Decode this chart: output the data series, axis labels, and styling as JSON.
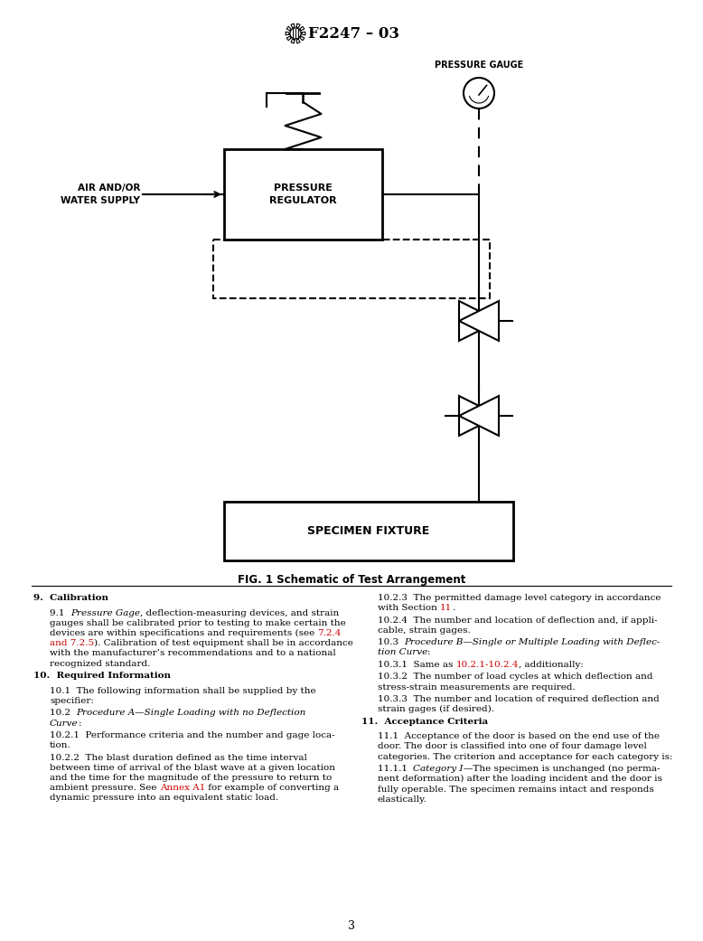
{
  "title": "F2247 – 03",
  "page_number": "3",
  "bg": "#ffffff",
  "black": "#000000",
  "red": "#cc0000",
  "fig_caption": "FIG. 1 Schematic of Test Arrangement",
  "pressure_gauge_label": "PRESSURE GAUGE",
  "pressure_regulator_label": "PRESSURE\nREGULATOR",
  "air_water_label": "AIR AND/OR\nWATER SUPPLY",
  "specimen_fixture_label": "SPECIMEN FIXTURE",
  "left_col": [
    {
      "type": "heading",
      "text": "9.  Calibration"
    },
    {
      "type": "para_mixed",
      "indent": 18,
      "segments": [
        {
          "t": "9.1  ",
          "s": "normal"
        },
        {
          "t": "Pressure Gage",
          "s": "italic"
        },
        {
          "t": ", deflection-measuring devices, and strain\ngauges shall be calibrated prior to testing to make certain the\ndevices are within specifications and requirements (see ",
          "s": "normal"
        },
        {
          "t": "7.2.4\nand 7.2.5",
          "s": "red"
        },
        {
          "t": "). Calibration of test equipment shall be in accordance\nwith the manufacturer’s recommendations and to a national\nrecognized standard.",
          "s": "normal"
        }
      ]
    },
    {
      "type": "heading",
      "text": "10.  Required Information"
    },
    {
      "type": "para_mixed",
      "indent": 18,
      "segments": [
        {
          "t": "10.1  The following information shall be supplied by the\nspecifier:",
          "s": "normal"
        }
      ]
    },
    {
      "type": "para_mixed",
      "indent": 18,
      "segments": [
        {
          "t": "10.2  ",
          "s": "normal"
        },
        {
          "t": "Procedure A—Single Loading with no Deflection\nCurve",
          "s": "italic"
        },
        {
          "t": ":",
          "s": "normal"
        }
      ]
    },
    {
      "type": "para_mixed",
      "indent": 18,
      "segments": [
        {
          "t": "10.2.1  Performance criteria and the number and gage loca-\ntion.",
          "s": "normal"
        }
      ]
    },
    {
      "type": "para_mixed",
      "indent": 18,
      "segments": [
        {
          "t": "10.2.2  The blast duration defined as the time interval\nbetween time of arrival of the blast wave at a given location\nand the time for the magnitude of the pressure to return to\nambient pressure. See ",
          "s": "normal"
        },
        {
          "t": "Annex A1",
          "s": "red"
        },
        {
          "t": " for example of converting a\ndynamic pressure into an equivalent static load.",
          "s": "normal"
        }
      ]
    }
  ],
  "right_col": [
    {
      "type": "para_mixed",
      "indent": 18,
      "segments": [
        {
          "t": "10.2.3  The permitted damage level category in accordance\nwith Section ",
          "s": "normal"
        },
        {
          "t": "11",
          "s": "red"
        },
        {
          "t": ".",
          "s": "normal"
        }
      ]
    },
    {
      "type": "para_mixed",
      "indent": 18,
      "segments": [
        {
          "t": "10.2.4  The number and location of deflection and, if appli-\ncable, strain gages.",
          "s": "normal"
        }
      ]
    },
    {
      "type": "para_mixed",
      "indent": 18,
      "segments": [
        {
          "t": "10.3  ",
          "s": "normal"
        },
        {
          "t": "Procedure B—Single or Multiple Loading with Deflec-\ntion Curve",
          "s": "italic"
        },
        {
          "t": ":",
          "s": "normal"
        }
      ]
    },
    {
      "type": "para_mixed",
      "indent": 18,
      "segments": [
        {
          "t": "10.3.1  Same as ",
          "s": "normal"
        },
        {
          "t": "10.2.1-10.2.4",
          "s": "red"
        },
        {
          "t": ", additionally:",
          "s": "normal"
        }
      ]
    },
    {
      "type": "para_mixed",
      "indent": 18,
      "segments": [
        {
          "t": "10.3.2  The number of load cycles at which deflection and\nstress-strain measurements are required.",
          "s": "normal"
        }
      ]
    },
    {
      "type": "para_mixed",
      "indent": 18,
      "segments": [
        {
          "t": "10.3.3  The number and location of required deflection and\nstrain gages (if desired).",
          "s": "normal"
        }
      ]
    },
    {
      "type": "heading",
      "text": "11.  Acceptance Criteria"
    },
    {
      "type": "para_mixed",
      "indent": 18,
      "segments": [
        {
          "t": "11.1  Acceptance of the door is based on the end use of the\ndoor. The door is classified into one of four damage level\ncategories. The criterion and acceptance for each category is:",
          "s": "normal"
        }
      ]
    },
    {
      "type": "para_mixed",
      "indent": 18,
      "segments": [
        {
          "t": "11.1.1  ",
          "s": "normal"
        },
        {
          "t": "Category I",
          "s": "italic"
        },
        {
          "t": "—The specimen is unchanged (no perma-\nnent deformation) after the loading incident and the door is\nfully operable. The specimen remains intact and responds\nelastically.",
          "s": "normal"
        }
      ]
    }
  ]
}
